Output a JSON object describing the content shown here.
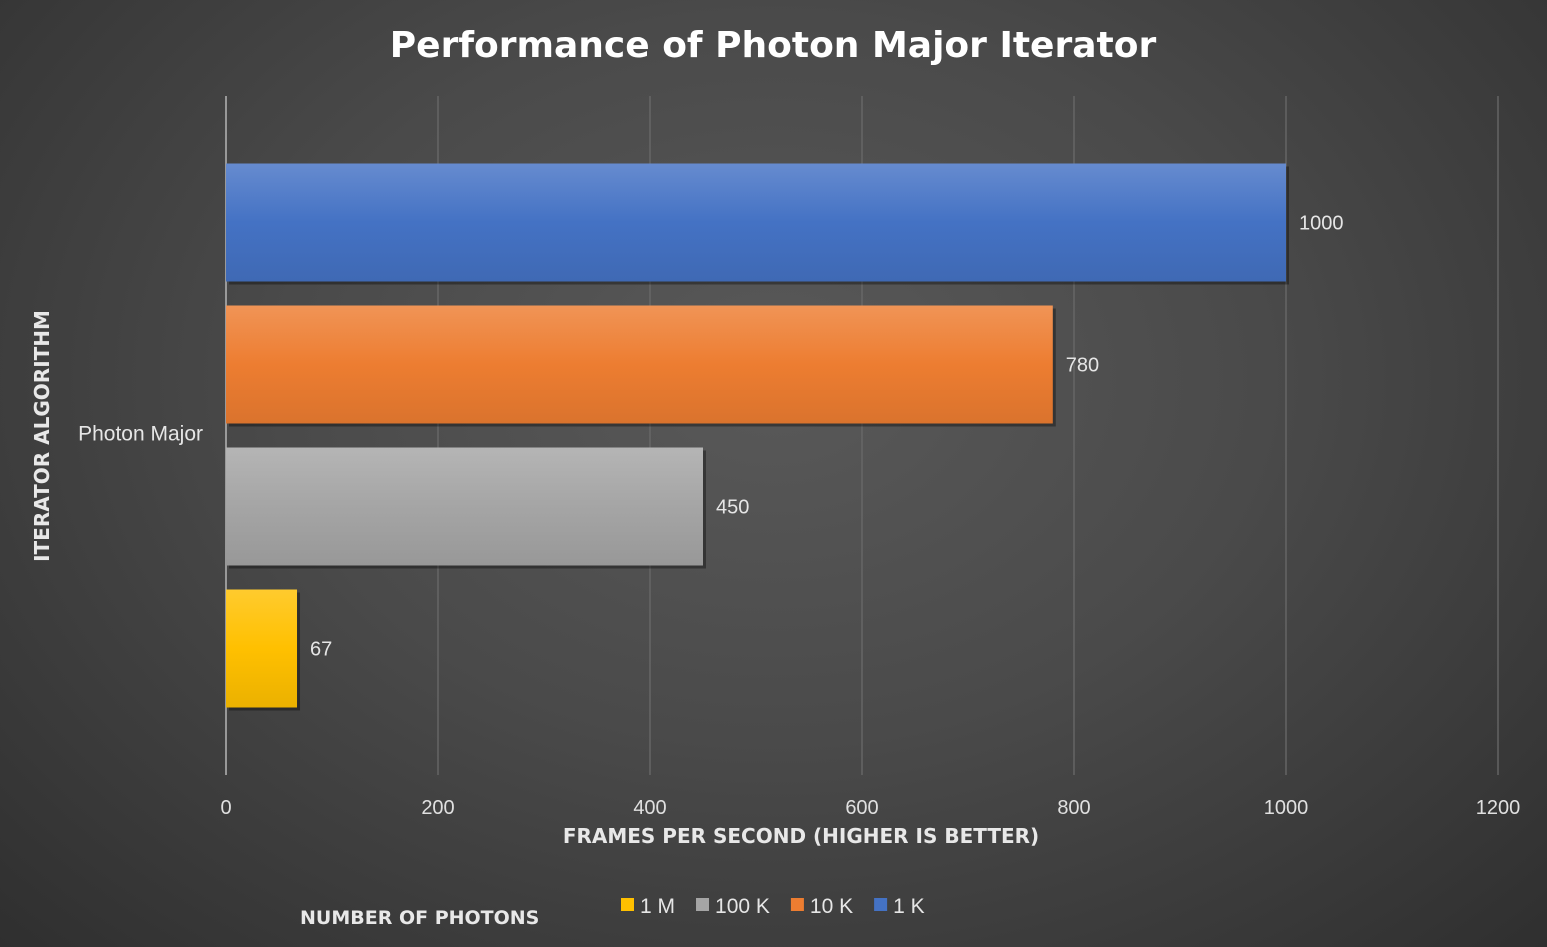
{
  "chart_data": {
    "type": "bar",
    "orientation": "horizontal",
    "title": "Performance of Photon Major Iterator",
    "xlabel": "FRAMES PER SECOND (HIGHER IS BETTER)",
    "ylabel": "ITERATOR ALGORITHM",
    "categories": [
      "Photon Major"
    ],
    "series": [
      {
        "name": "1 M",
        "values": [
          67
        ],
        "color": "#ffc000"
      },
      {
        "name": "100 K",
        "values": [
          450
        ],
        "color": "#a5a5a5"
      },
      {
        "name": "10 K",
        "values": [
          780
        ],
        "color": "#ed7d31"
      },
      {
        "name": "1 K",
        "values": [
          1000
        ],
        "color": "#4472c4"
      }
    ],
    "xlim": [
      0,
      1200
    ],
    "xticks": [
      0,
      200,
      400,
      600,
      800,
      1000,
      1200
    ],
    "grid": true,
    "data_labels": true,
    "legend": {
      "title": "NUMBER OF PHOTONS",
      "position": "bottom"
    }
  }
}
